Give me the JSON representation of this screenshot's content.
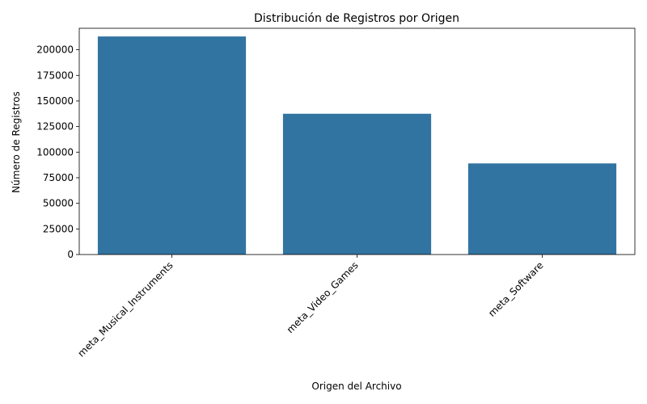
{
  "chart_data": {
    "type": "bar",
    "title": "Distribución de Registros por Origen",
    "xlabel": "Origen del Archivo",
    "ylabel": "Número de Registros",
    "categories": [
      "meta_Musical_Instruments",
      "meta_Video_Games",
      "meta_Software"
    ],
    "values": [
      213000,
      137500,
      89000
    ],
    "ylim": [
      0,
      221000
    ],
    "yticks": [
      0,
      25000,
      50000,
      75000,
      100000,
      125000,
      150000,
      175000,
      200000
    ],
    "grid": false,
    "legend": "none",
    "bar_color": "#3274a1",
    "tick_label_rotation": 45
  }
}
